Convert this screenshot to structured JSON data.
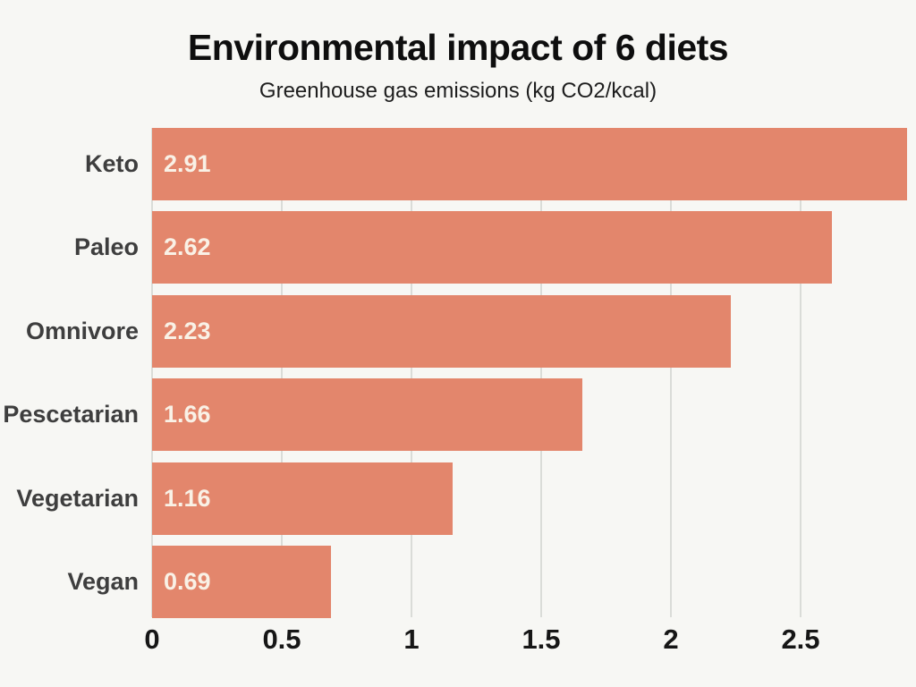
{
  "chart_data": {
    "type": "bar",
    "orientation": "horizontal",
    "title": "Environmental impact of 6 diets",
    "subtitle": "Greenhouse gas emissions (kg CO2/kcal)",
    "categories": [
      "Keto",
      "Paleo",
      "Omnivore",
      "Pescetarian",
      "Vegetarian",
      "Vegan"
    ],
    "values": [
      2.91,
      2.62,
      2.23,
      1.66,
      1.16,
      0.69
    ],
    "value_labels": [
      "2.91",
      "2.62",
      "2.23",
      "1.66",
      "1.16",
      "0.69"
    ],
    "xlabel": "",
    "ylabel": "",
    "xlim": [
      0,
      2.95
    ],
    "x_ticks": [
      0,
      0.5,
      1,
      1.5,
      2,
      2.5
    ],
    "x_tick_labels": [
      "0",
      "0.5",
      "1",
      "1.5",
      "2",
      "2.5"
    ],
    "grid": "vertical-only",
    "legend": "none",
    "colors": {
      "bar": "#e3866c",
      "background": "#f7f7f4",
      "grid_line": "#dadcd8",
      "category_label": "#3e3e3e",
      "value_label": "#f9f1e6",
      "tick_label": "#161616",
      "title": "#0e0e0e",
      "subtitle": "#1e1e1e"
    }
  }
}
